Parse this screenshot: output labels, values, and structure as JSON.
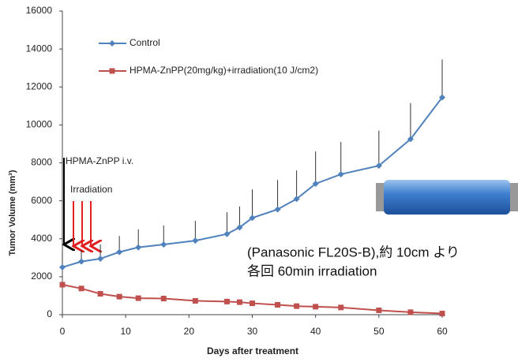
{
  "chart_data": {
    "type": "line",
    "x_label": "Days after treatment",
    "y_label": "Tumor Volume (mm³)",
    "x": [
      0,
      3,
      6,
      9,
      12,
      16,
      21,
      26,
      28,
      30,
      34,
      37,
      40,
      44,
      50,
      55,
      60
    ],
    "series": [
      {
        "name": "Control",
        "color": "#4f81bd",
        "marker": "diamond",
        "values": [
          2500,
          2800,
          2950,
          3300,
          3550,
          3700,
          3900,
          4250,
          4600,
          5100,
          5550,
          6100,
          6900,
          7400,
          7850,
          9250,
          11450
        ],
        "errors": [
          750,
          600,
          750,
          850,
          950,
          1000,
          1050,
          1150,
          1100,
          1500,
          1550,
          1500,
          1700,
          1700,
          1850,
          1900,
          2000
        ]
      },
      {
        "name": "HPMA-ZnPP(20mg/kg)+irradiation(10 J/cm2)",
        "color": "#c0504d",
        "marker": "square",
        "values": [
          1580,
          1380,
          1100,
          950,
          870,
          850,
          730,
          690,
          660,
          600,
          520,
          450,
          420,
          380,
          230,
          130,
          60
        ]
      }
    ],
    "xlim": [
      0,
      60
    ],
    "xticks": [
      0,
      10,
      20,
      30,
      40,
      50,
      60
    ],
    "ylim": [
      0,
      16000
    ],
    "yticks": [
      0,
      2000,
      4000,
      6000,
      8000,
      10000,
      12000,
      14000,
      16000
    ],
    "annotations": [
      "HPMA-ZnPP i.v.",
      "Irradiation",
      "(Panasonic FL20S-B),約 10cm より",
      "各回 60min irradiation"
    ]
  }
}
